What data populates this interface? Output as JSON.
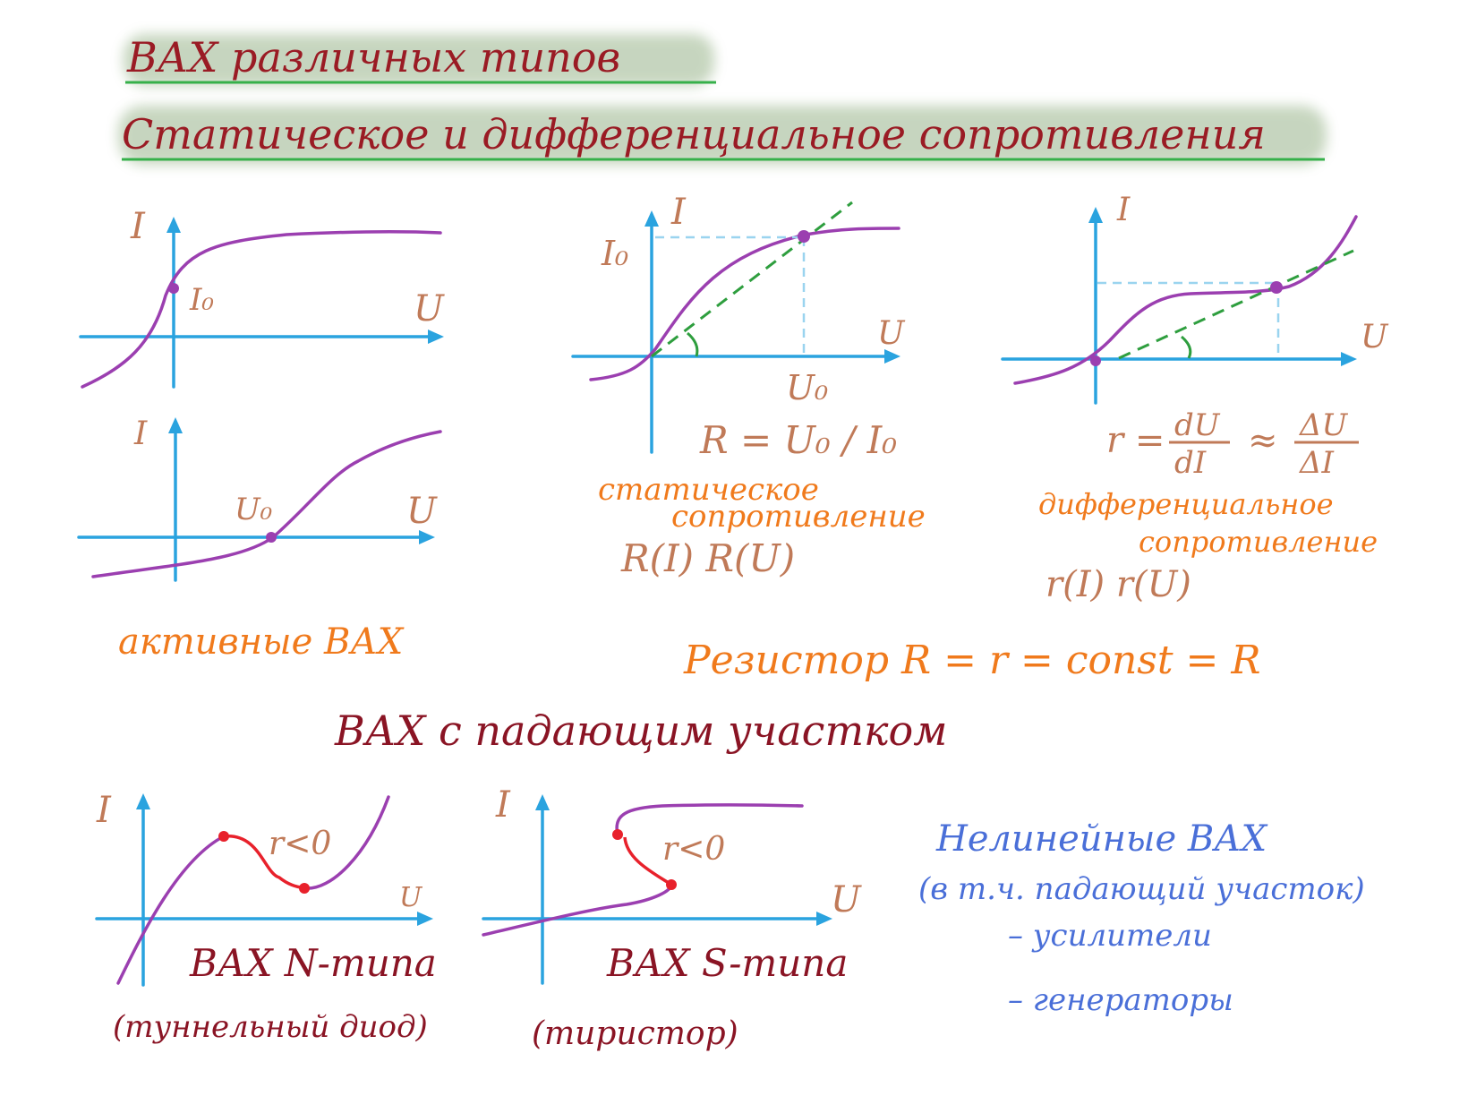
{
  "title": {
    "line1": "ВАХ различных типов",
    "line2": "Статическое и дифференциальное сопротивления"
  },
  "colors": {
    "axis": "#2aa3df",
    "curve": "#9b3fb0",
    "negative_segment": "#e8212b",
    "tangent": "#2e9e3e",
    "title": "#9a1b24",
    "label_orange": "#f07a1c",
    "label_brown": "#c07a58",
    "label_blue": "#4a6fd8"
  },
  "active_vax": {
    "graph1": {
      "y_axis": "I",
      "x_axis": "U",
      "point_label": "I₀"
    },
    "graph2": {
      "y_axis": "I",
      "x_axis": "U",
      "point_label": "U₀"
    },
    "caption": "активные ВАХ"
  },
  "static_resistance": {
    "y_axis": "I",
    "x_axis": "U",
    "current_label": "I₀",
    "voltage_label": "U₀",
    "formula": "R = U₀ / I₀",
    "caption_line1": "статическое",
    "caption_line2": "сопротивление",
    "dependencies": "R(I)  R(U)"
  },
  "differential_resistance": {
    "y_axis": "I",
    "x_axis": "U",
    "formula_lhs": "r =",
    "formula_num1": "dU",
    "formula_den1": "dI",
    "formula_approx": "≈",
    "formula_num2": "ΔU",
    "formula_den2": "ΔI",
    "caption_line1": "дифференциальное",
    "caption_line2": "сопротивление",
    "dependencies": "r(I)    r(U)"
  },
  "resistor_note": "Резистор R = r = const = R",
  "negative_section_heading": "ВАХ с падающим участком",
  "n_type": {
    "y_axis": "I",
    "x_axis": "U",
    "condition": "r<0",
    "caption": "ВАХ N-типа",
    "example": "(туннельный диод)"
  },
  "s_type": {
    "y_axis": "I",
    "x_axis": "U",
    "condition": "r<0",
    "caption": "ВАХ S-типа",
    "example": "(тиристор)"
  },
  "nonlinear": {
    "heading": "Нелинейные ВАХ",
    "subheading": "(в т.ч. падающий участок)",
    "use1": "– усилители",
    "use2": "– генераторы"
  }
}
